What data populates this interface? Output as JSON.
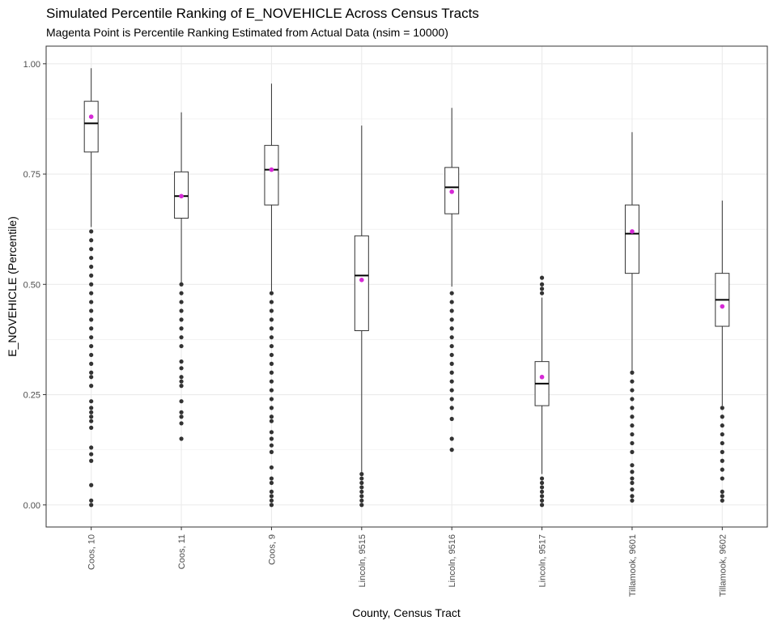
{
  "chart_data": {
    "type": "boxplot",
    "title": "Simulated Percentile Ranking of E_NOVEHICLE Across Census Tracts",
    "subtitle": "Magenta Point is Percentile Ranking Estimated from Actual Data (nsim = 10000)",
    "xlabel": "County, Census Tract",
    "ylabel": "E_NOVEHICLE (Percentile)",
    "ylim": [
      -0.05,
      1.04
    ],
    "yticks": [
      0.0,
      0.25,
      0.5,
      0.75,
      1.0
    ],
    "ytick_labels": [
      "0.00",
      "0.25",
      "0.50",
      "0.75",
      "1.00"
    ],
    "grid": true,
    "colors": {
      "point": "#d62ad6",
      "outlier": "#333333",
      "box": "#333333",
      "grid": "#ebebeb",
      "panel_border": "#333333"
    },
    "categories": [
      "Coos, 10",
      "Coos, 11",
      "Coos, 9",
      "Lincoln, 9515",
      "Lincoln, 9516",
      "Lincoln, 9517",
      "Tillamook, 9601",
      "Tillamook, 9602"
    ],
    "boxes": [
      {
        "label": "Coos, 10",
        "whisker_low": 0.63,
        "q1": 0.8,
        "median": 0.865,
        "q3": 0.915,
        "whisker_high": 0.99,
        "actual": 0.88,
        "outliers": [
          0.0,
          0.01,
          0.045,
          0.1,
          0.115,
          0.13,
          0.175,
          0.19,
          0.2,
          0.21,
          0.22,
          0.235,
          0.27,
          0.29,
          0.3,
          0.32,
          0.34,
          0.36,
          0.38,
          0.4,
          0.42,
          0.44,
          0.46,
          0.48,
          0.5,
          0.52,
          0.54,
          0.56,
          0.58,
          0.6,
          0.62
        ]
      },
      {
        "label": "Coos, 11",
        "whisker_low": 0.5,
        "q1": 0.65,
        "median": 0.7,
        "q3": 0.755,
        "whisker_high": 0.89,
        "actual": 0.7,
        "outliers": [
          0.15,
          0.185,
          0.2,
          0.21,
          0.235,
          0.27,
          0.28,
          0.29,
          0.31,
          0.325,
          0.36,
          0.38,
          0.4,
          0.42,
          0.44,
          0.46,
          0.48,
          0.5
        ]
      },
      {
        "label": "Coos, 9",
        "whisker_low": 0.485,
        "q1": 0.68,
        "median": 0.76,
        "q3": 0.815,
        "whisker_high": 0.955,
        "actual": 0.76,
        "outliers": [
          0.0,
          0.01,
          0.02,
          0.03,
          0.05,
          0.06,
          0.085,
          0.12,
          0.135,
          0.15,
          0.165,
          0.19,
          0.2,
          0.22,
          0.24,
          0.26,
          0.28,
          0.3,
          0.32,
          0.34,
          0.36,
          0.38,
          0.4,
          0.42,
          0.44,
          0.46,
          0.48
        ]
      },
      {
        "label": "Lincoln, 9515",
        "whisker_low": 0.075,
        "q1": 0.395,
        "median": 0.52,
        "q3": 0.61,
        "whisker_high": 0.86,
        "actual": 0.51,
        "outliers": [
          0.0,
          0.01,
          0.02,
          0.03,
          0.04,
          0.05,
          0.06,
          0.07
        ]
      },
      {
        "label": "Lincoln, 9516",
        "whisker_low": 0.495,
        "q1": 0.66,
        "median": 0.72,
        "q3": 0.765,
        "whisker_high": 0.9,
        "actual": 0.71,
        "outliers": [
          0.125,
          0.15,
          0.195,
          0.22,
          0.24,
          0.26,
          0.28,
          0.3,
          0.32,
          0.34,
          0.36,
          0.38,
          0.4,
          0.42,
          0.44,
          0.46,
          0.48
        ]
      },
      {
        "label": "Lincoln, 9517",
        "whisker_low": 0.07,
        "q1": 0.225,
        "median": 0.275,
        "q3": 0.325,
        "whisker_high": 0.47,
        "actual": 0.29,
        "outliers": [
          0.0,
          0.01,
          0.02,
          0.03,
          0.04,
          0.05,
          0.06,
          0.48,
          0.49,
          0.5,
          0.515
        ]
      },
      {
        "label": "Tillamook, 9601",
        "whisker_low": 0.305,
        "q1": 0.525,
        "median": 0.615,
        "q3": 0.68,
        "whisker_high": 0.845,
        "actual": 0.62,
        "outliers": [
          0.01,
          0.02,
          0.035,
          0.05,
          0.06,
          0.075,
          0.09,
          0.12,
          0.14,
          0.16,
          0.18,
          0.2,
          0.22,
          0.24,
          0.26,
          0.28,
          0.3
        ]
      },
      {
        "label": "Tillamook, 9602",
        "whisker_low": 0.225,
        "q1": 0.405,
        "median": 0.465,
        "q3": 0.525,
        "whisker_high": 0.69,
        "actual": 0.45,
        "outliers": [
          0.01,
          0.02,
          0.03,
          0.06,
          0.08,
          0.1,
          0.12,
          0.14,
          0.16,
          0.18,
          0.2,
          0.22
        ]
      }
    ]
  }
}
